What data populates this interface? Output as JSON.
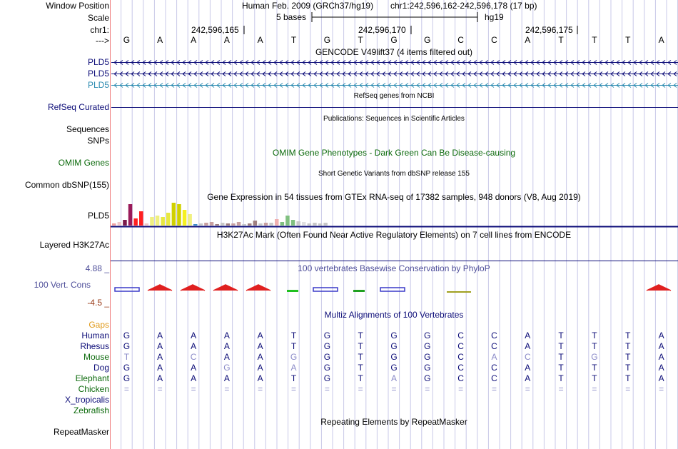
{
  "labels": {
    "window_position": "Window Position",
    "scale": "Scale",
    "chr": "chr1:",
    "strand_arrow": "--->",
    "pld5_a": "PLD5",
    "pld5_b": "PLD5",
    "pld5_c": "PLD5",
    "refseq": "RefSeq Curated",
    "sequences": "Sequences",
    "snps": "SNPs",
    "omim": "OMIM Genes",
    "dbsnp": "Common dbSNP(155)",
    "gtex_pld5": "PLD5",
    "h3k27ac": "Layered H3K27Ac",
    "cons_max": "4.88 _",
    "cons": "100 Vert. Cons",
    "cons_min": "-4.5 _",
    "gaps": "Gaps",
    "human": "Human",
    "rhesus": "Rhesus",
    "mouse": "Mouse",
    "dog": "Dog",
    "elephant": "Elephant",
    "chicken": "Chicken",
    "xtrop": "X_tropicalis",
    "zebrafish": "Zebrafish",
    "repeatmasker": "RepeatMasker"
  },
  "header": {
    "assembly": "Human Feb. 2009 (GRCh37/hg19)",
    "position": "chr1:242,596,162-242,596,178 (17 bp)",
    "scale_text": "5 bases",
    "db": "hg19",
    "coord1": "242,596,165",
    "coord2": "242,596,170",
    "coord3": "242,596,175"
  },
  "bases": [
    "G",
    "A",
    "A",
    "A",
    "A",
    "T",
    "G",
    "T",
    "G",
    "G",
    "C",
    "C",
    "A",
    "T",
    "T",
    "T",
    "A"
  ],
  "alignments": {
    "human": [
      "G",
      "A",
      "A",
      "A",
      "A",
      "T",
      "G",
      "T",
      "G",
      "G",
      "C",
      "C",
      "A",
      "T",
      "T",
      "T",
      "A"
    ],
    "rhesus": [
      "G",
      "A",
      "A",
      "A",
      "A",
      "T",
      "G",
      "T",
      "G",
      "G",
      "C",
      "C",
      "A",
      "T",
      "T",
      "T",
      "A"
    ],
    "mouse": [
      "T",
      "A",
      "C",
      "A",
      "A",
      "G",
      "G",
      "T",
      "G",
      "G",
      "C",
      "A",
      "C",
      "T",
      "G",
      "T",
      "A"
    ],
    "dog": [
      "G",
      "A",
      "A",
      "G",
      "A",
      "A",
      "G",
      "T",
      "G",
      "G",
      "C",
      "C",
      "A",
      "T",
      "T",
      "T",
      "A"
    ],
    "elephant": [
      "G",
      "A",
      "A",
      "A",
      "A",
      "T",
      "G",
      "T",
      "A",
      "G",
      "C",
      "C",
      "A",
      "T",
      "T",
      "T",
      "A"
    ],
    "chicken": [
      "=",
      "=",
      "=",
      "=",
      "=",
      "=",
      "=",
      "=",
      "=",
      "=",
      "=",
      "=",
      "=",
      "=",
      "=",
      "=",
      "="
    ]
  },
  "titles": {
    "gencode": "GENCODE V49lift37 (4 items filtered out)",
    "refseq": "RefSeq genes from NCBI",
    "publications": "Publications: Sequences in Scientific Articles",
    "omim": "OMIM Gene Phenotypes - Dark Green Can Be Disease-causing",
    "dbsnp": "Short Genetic Variants from dbSNP release 155",
    "gtex": "Gene Expression in 54 tissues from GTEx RNA-seq of 17382 samples, 948 donors (V8, Aug 2019)",
    "h3k27ac": "H3K27Ac Mark (Often Found Near Active Regulatory Elements) on 7 cell lines from ENCODE",
    "phylop": "100 vertebrates Basewise Conservation by PhyloP",
    "multiz": "Multiz Alignments of 100 Vertebrates",
    "repeatmasker": "Repeating Elements by RepeatMasker"
  },
  "colors": {
    "gencode_dark": "#0c0c78",
    "gencode_teal": "#2a8ab0",
    "refseq": "#0c0c78",
    "omim": "#0c6a0c",
    "phylop_label": "#4f4f9a",
    "cons_max": "#4f4f9a",
    "cons_min": "#9a3c1a",
    "gaps": "#e09a1a",
    "species": "#0c0c78",
    "species_green": "#0c6a0c",
    "mismatch": "#8a8ac8",
    "guide": "#c8c8e8",
    "left_rule": "#f08080"
  },
  "gtex_bar_colors": [
    "#f0a0a0",
    "#f0c8c8",
    "#9a1a5a",
    "#7a1a4a",
    "#ff2020",
    "#f0f080",
    "#e8e840",
    "#d0d000",
    "#f5f020",
    "#ffe000",
    "#3a8ac8",
    "#c8a0a0",
    "#a08080",
    "#c8c8c8",
    "#80c080",
    "#f0b0b0",
    "#e0e0e0"
  ]
}
